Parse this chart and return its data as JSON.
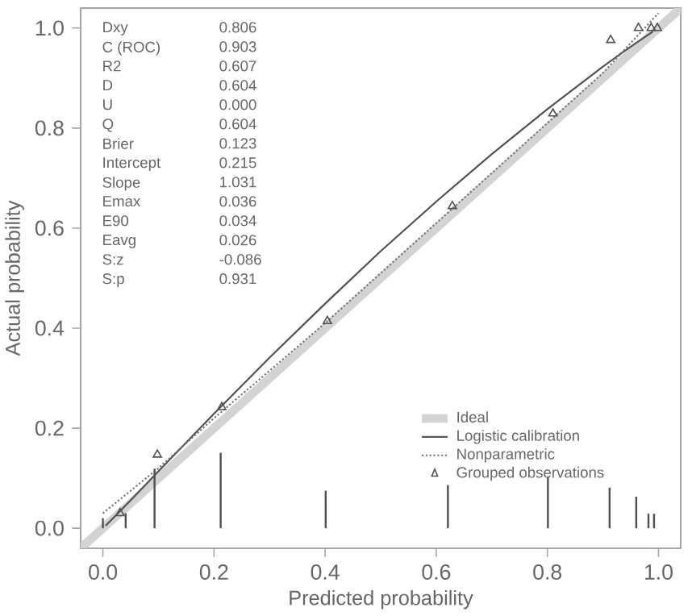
{
  "chart_data": {
    "type": "line",
    "xlabel": "Predicted probability",
    "ylabel": "Actual probability",
    "xlim": [
      -0.04,
      1.04
    ],
    "ylim": [
      -0.04,
      1.04
    ],
    "xticks": [
      {
        "value": 0,
        "label": "0.0"
      },
      {
        "value": 0.2,
        "label": "0.2"
      },
      {
        "value": 0.4,
        "label": "0.4"
      },
      {
        "value": 0.6,
        "label": "0.6"
      },
      {
        "value": 0.8,
        "label": "0.8"
      },
      {
        "value": 1,
        "label": "1.0"
      }
    ],
    "yticks": [
      {
        "value": 0,
        "label": "0.0"
      },
      {
        "value": 0.2,
        "label": "0.2"
      },
      {
        "value": 0.4,
        "label": "0.4"
      },
      {
        "value": 0.6,
        "label": "0.6"
      },
      {
        "value": 0.8,
        "label": "0.8"
      },
      {
        "value": 1,
        "label": "1.0"
      }
    ],
    "legend": "bottom right",
    "series": [
      {
        "name": "Ideal",
        "color": "#d3d3d3",
        "line_style": "solid",
        "marker": "none",
        "x": [
          -0.04,
          1.04
        ],
        "values": [
          -0.04,
          1.04
        ]
      },
      {
        "name": "Logistic calibration",
        "color": "#505050",
        "line_style": "solid",
        "marker": "none",
        "x": [
          0.005,
          0.05,
          0.1,
          0.2,
          0.3,
          0.4,
          0.5,
          0.6,
          0.7,
          0.8,
          0.9,
          0.95,
          0.99
        ],
        "values": [
          0.005,
          0.056,
          0.114,
          0.229,
          0.341,
          0.449,
          0.554,
          0.653,
          0.748,
          0.838,
          0.923,
          0.963,
          0.993
        ]
      },
      {
        "name": "Nonparametric",
        "color": "#707070",
        "line_style": "dotted",
        "marker": "none",
        "x": [
          0.0,
          0.1,
          0.2,
          0.4,
          0.6,
          0.8,
          0.9,
          0.95,
          1.0
        ],
        "values": [
          0.03,
          0.12,
          0.22,
          0.41,
          0.61,
          0.81,
          0.91,
          0.97,
          1.03
        ]
      },
      {
        "name": "Grouped observations",
        "type": "scatter",
        "color": "#505050",
        "marker": "triangle",
        "x": [
          0.031,
          0.098,
          0.214,
          0.404,
          0.629,
          0.81,
          0.914,
          0.964,
          0.987,
          0.998
        ],
        "values": [
          0.03,
          0.147,
          0.242,
          0.414,
          0.644,
          0.829,
          0.976,
          1.0,
          1.0,
          1.0
        ]
      },
      {
        "type": "bar",
        "color": "#505050",
        "x": [
          0.0,
          0.041,
          0.093,
          0.212,
          0.401,
          0.621,
          0.801,
          0.912,
          0.96,
          0.982,
          0.992
        ],
        "values": [
          0.02,
          0.03,
          0.119,
          0.151,
          0.075,
          0.086,
          0.102,
          0.081,
          0.063,
          0.029,
          0.029
        ]
      }
    ],
    "annotations": [
      "Dxy",
      "0.806",
      "C (ROC)",
      "0.903",
      "R2",
      "0.607",
      "D",
      "0.604",
      "U",
      "0.000",
      "Q",
      "0.604",
      "Brier",
      "0.123",
      "Intercept",
      "0.215",
      "Slope",
      "1.031",
      "Emax",
      "0.036",
      "E90",
      "0.034",
      "Eavg",
      "0.026",
      "S:z",
      "-0.086",
      "S:p",
      "0.931"
    ]
  }
}
